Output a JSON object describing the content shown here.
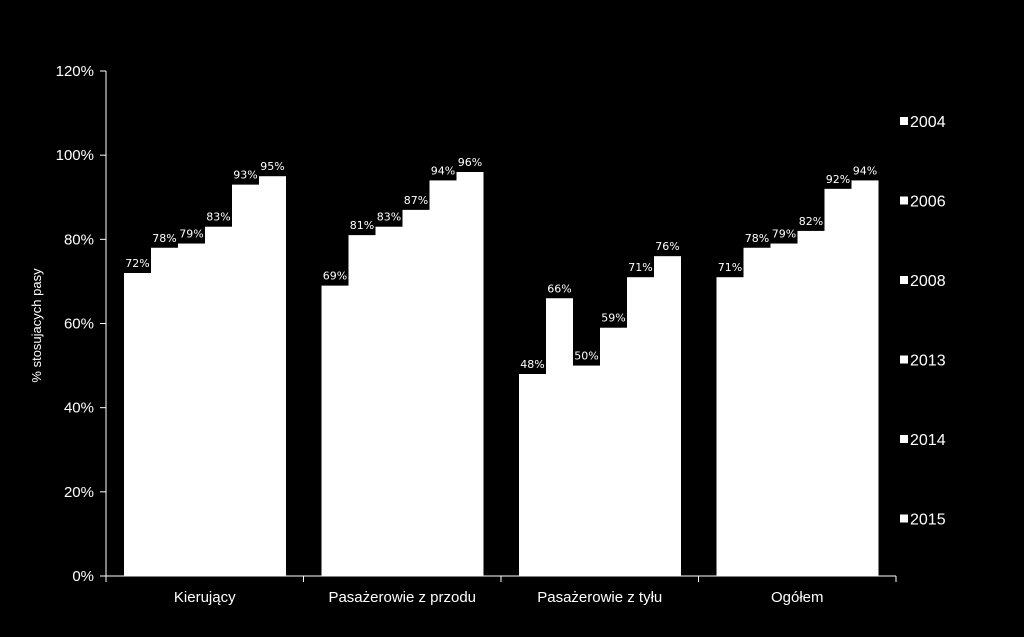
{
  "chart_data": {
    "type": "bar",
    "title": "",
    "xlabel": "",
    "ylabel": "% stosujacych pasy",
    "ylim": [
      0,
      120
    ],
    "yticks": [
      "0%",
      "20%",
      "40%",
      "60%",
      "80%",
      "100%",
      "120%"
    ],
    "categories": [
      "Kierujący",
      "Pasażerowie z przodu",
      "Pasażerowie z tyłu",
      "Ogółem"
    ],
    "series": [
      {
        "name": "2004",
        "values": [
          72,
          69,
          48,
          71
        ],
        "labels": [
          "72%",
          "69%",
          "48%",
          "71%"
        ]
      },
      {
        "name": "2006",
        "values": [
          78,
          81,
          66,
          78
        ],
        "labels": [
          "78%",
          "81%",
          "66%",
          "78%"
        ]
      },
      {
        "name": "2008",
        "values": [
          79,
          83,
          50,
          79
        ],
        "labels": [
          "79%",
          "83%",
          "50%",
          "79%"
        ]
      },
      {
        "name": "2013",
        "values": [
          83,
          87,
          59,
          82
        ],
        "labels": [
          "83%",
          "87%",
          "59%",
          "82%"
        ]
      },
      {
        "name": "2014",
        "values": [
          93,
          94,
          71,
          92
        ],
        "labels": [
          "93%",
          "94%",
          "71%",
          "92%"
        ]
      },
      {
        "name": "2015",
        "values": [
          95,
          96,
          76,
          94
        ],
        "labels": [
          "95%",
          "96%",
          "76%",
          "94%"
        ]
      }
    ],
    "bar_color": "#ffffff",
    "background": "#000000",
    "text_color": "#ffffff",
    "grid": false,
    "legend_position": "right"
  }
}
